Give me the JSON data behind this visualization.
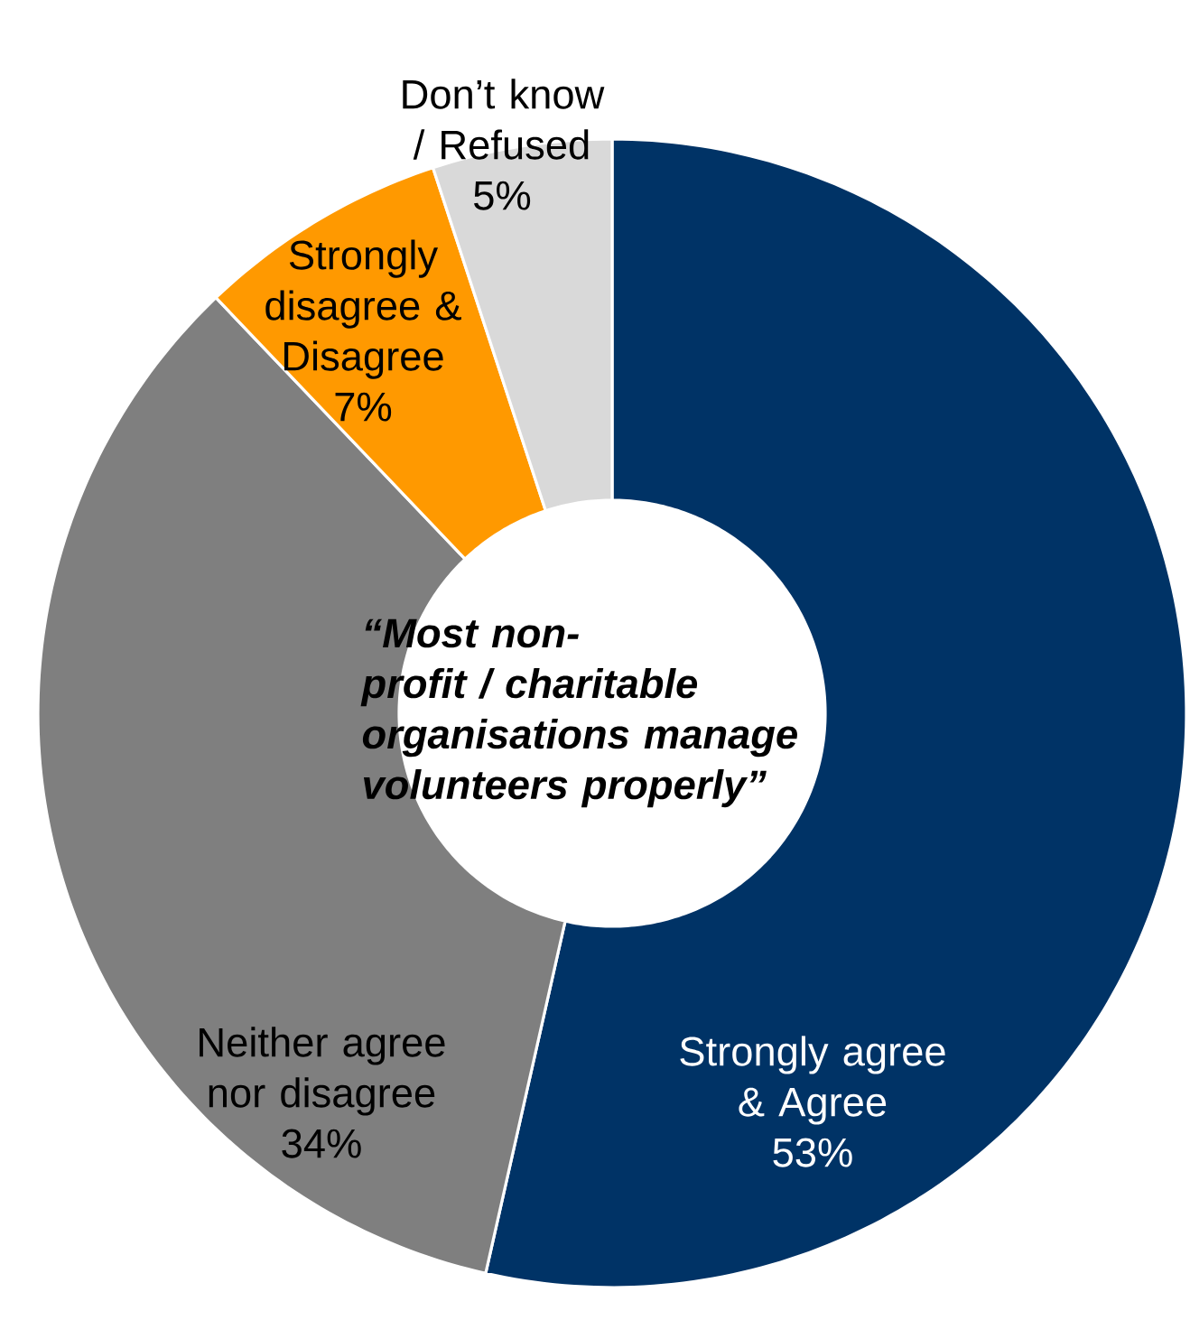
{
  "chart_data": {
    "type": "donut",
    "title": "“Most non-profit / charitable organisations manage volunteers properly”",
    "categories": [
      "Strongly agree & Agree",
      "Neither agree nor disagree",
      "Strongly disagree & Disagree",
      "Don’t know / Refused"
    ],
    "values": [
      53,
      34,
      7,
      5
    ],
    "colors": [
      "#003366",
      "#7f7f7f",
      "#ff9900",
      "#d9d9d9"
    ],
    "value_labels": [
      "53%",
      "34%",
      "7%",
      "5%"
    ]
  }
}
